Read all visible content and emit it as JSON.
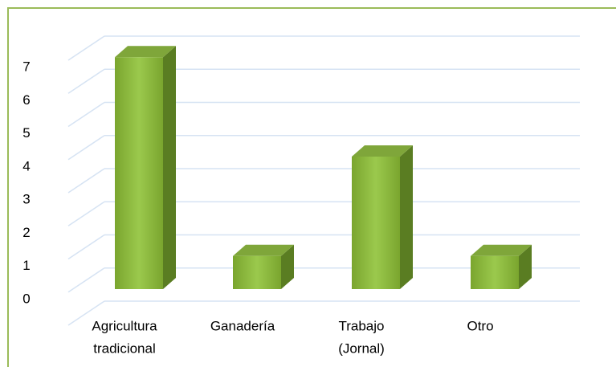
{
  "chart_data": {
    "type": "bar3d",
    "categories": [
      [
        "Agricultura",
        "tradicional"
      ],
      [
        "Ganadería"
      ],
      [
        "Trabajo",
        "(Jornal)"
      ],
      [
        "Otro"
      ]
    ],
    "values": [
      7,
      1,
      4,
      1
    ],
    "color": "#8cb83e",
    "ylim": [
      0,
      8
    ],
    "yticks": [
      0,
      1,
      2,
      3,
      4,
      5,
      6,
      7
    ],
    "grid": true
  }
}
